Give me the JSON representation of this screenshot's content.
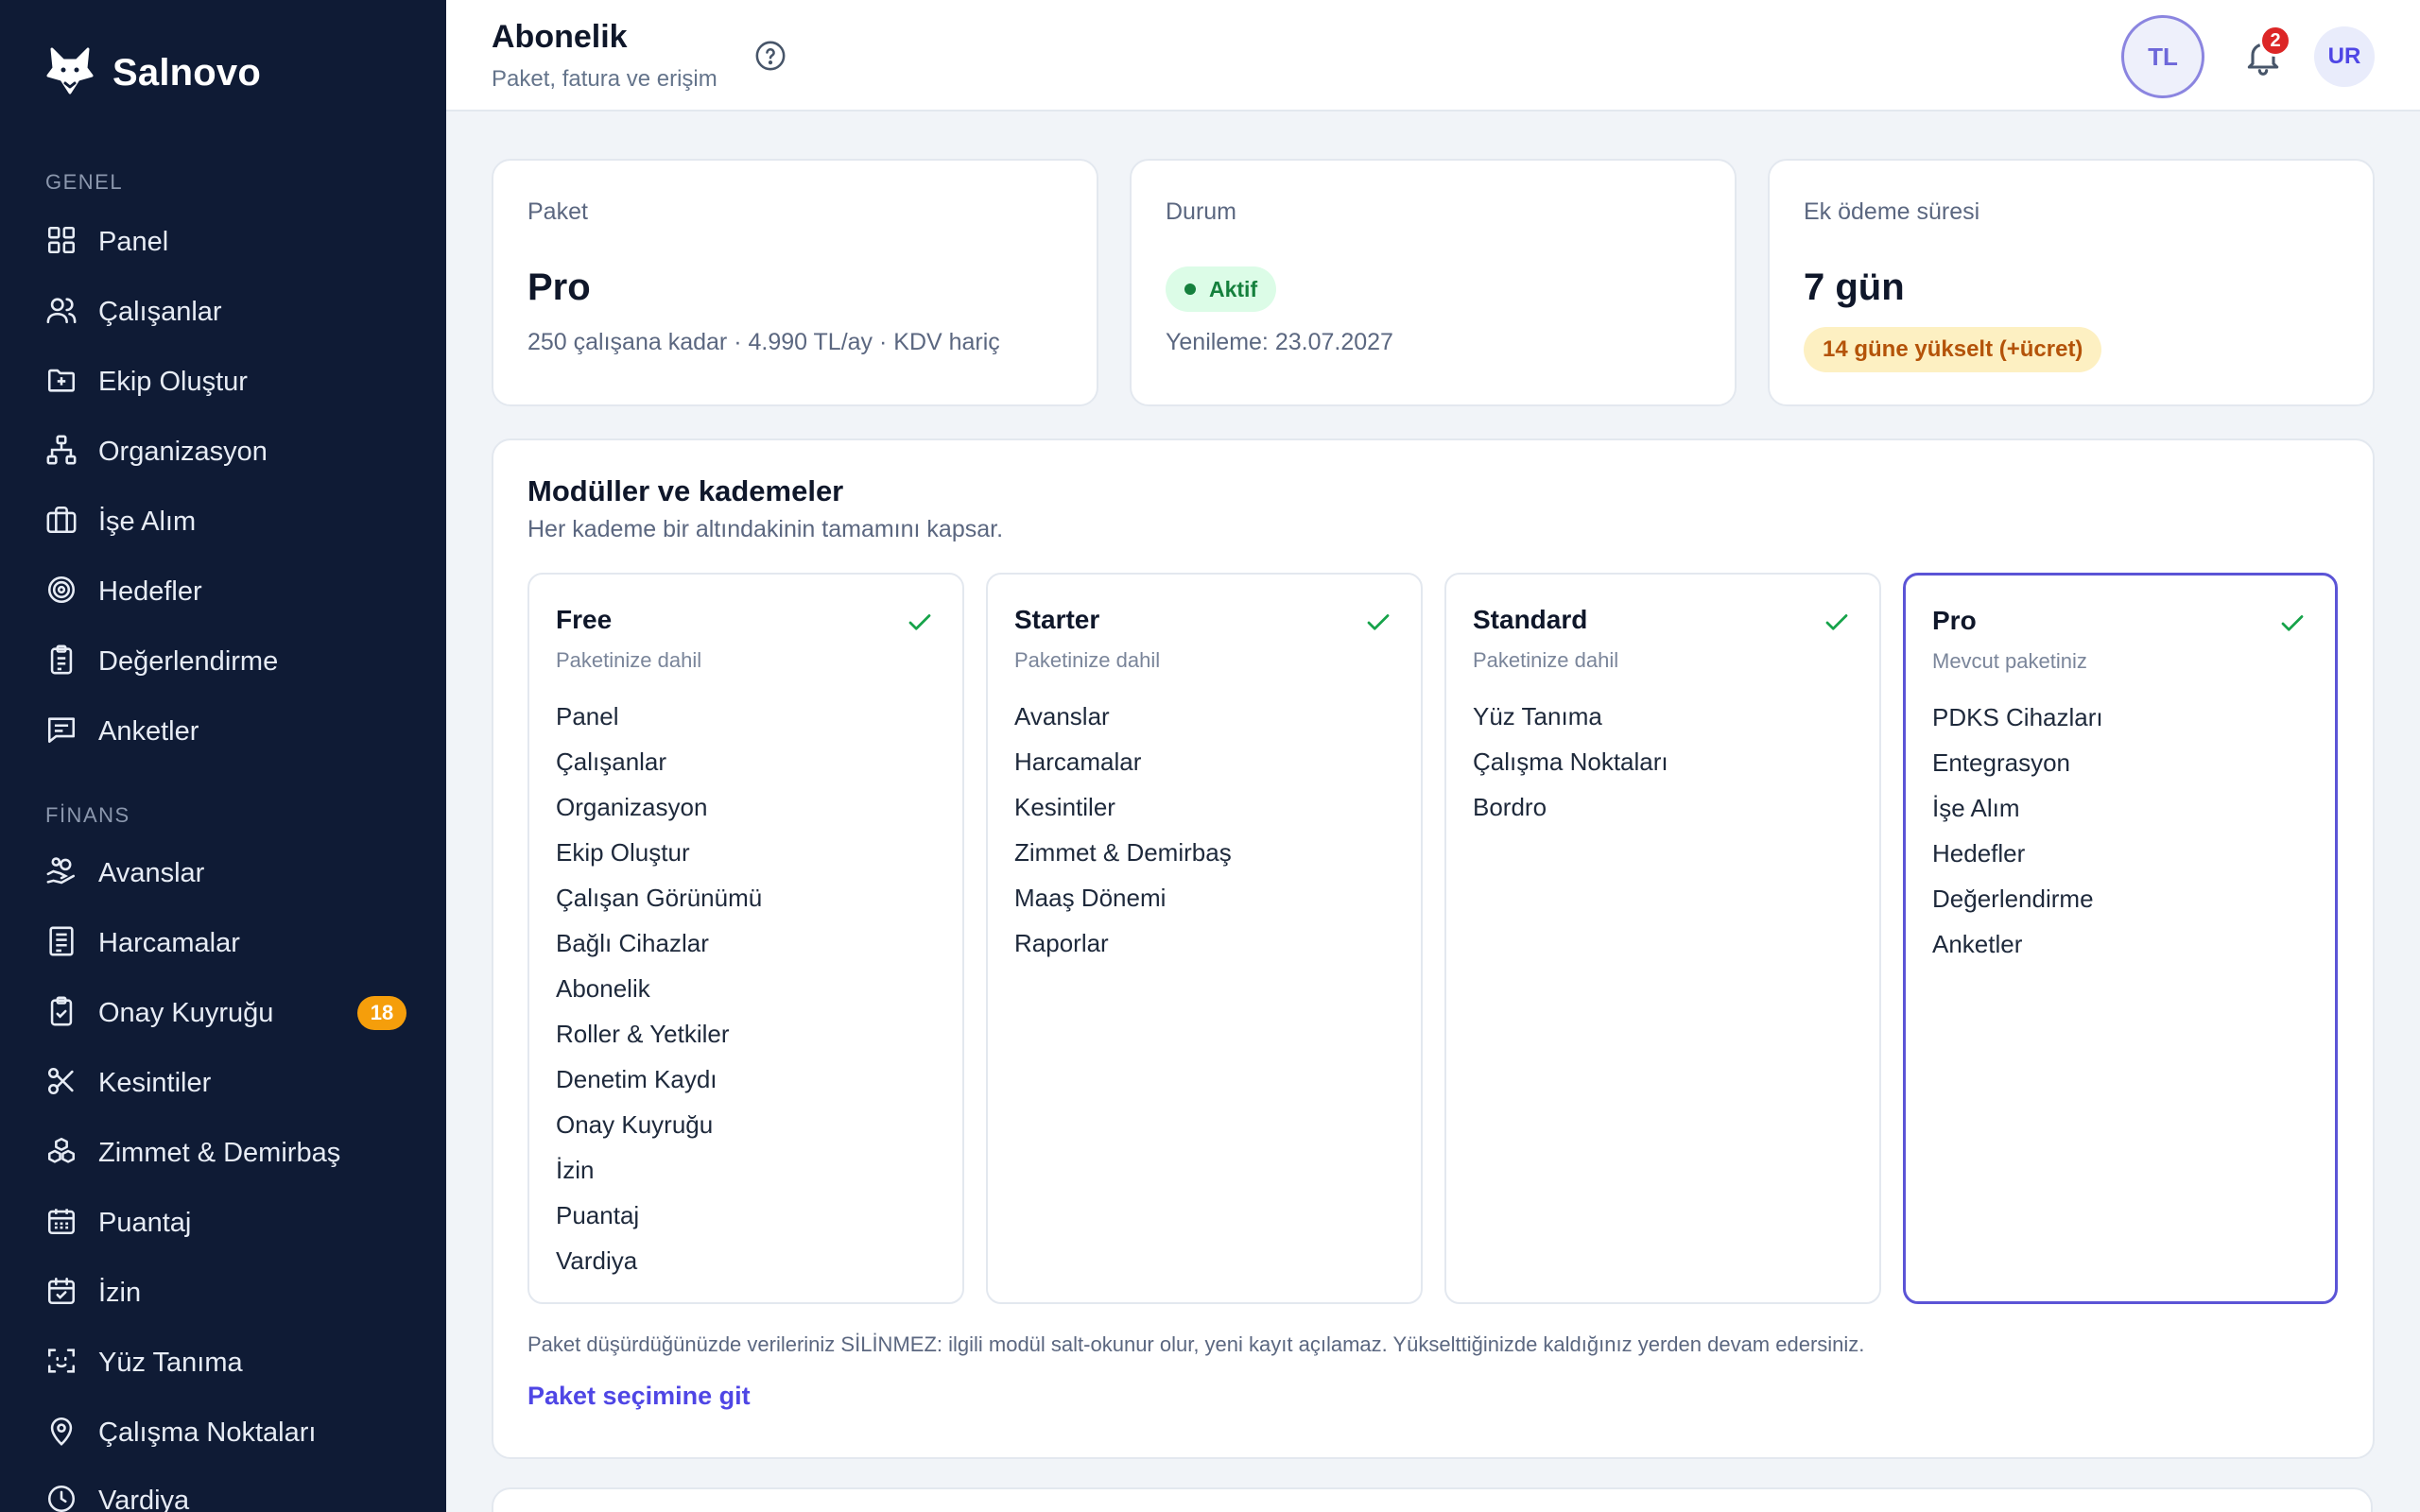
{
  "sidebar": {
    "brand": "Salnovo",
    "sections": [
      {
        "label": "GENEL",
        "items": [
          {
            "label": "Panel",
            "icon": "grid-icon"
          },
          {
            "label": "Çalışanlar",
            "icon": "users-icon"
          },
          {
            "label": "Ekip Oluştur",
            "icon": "folder-plus-icon"
          },
          {
            "label": "Organizasyon",
            "icon": "org-chart-icon"
          },
          {
            "label": "İşe Alım",
            "icon": "briefcase-icon"
          },
          {
            "label": "Hedefler",
            "icon": "target-icon"
          },
          {
            "label": "Değerlendirme",
            "icon": "clipboard-list-icon"
          },
          {
            "label": "Anketler",
            "icon": "message-square-icon"
          }
        ]
      },
      {
        "label": "FİNANS",
        "items": [
          {
            "label": "Avanslar",
            "icon": "hand-coins-icon"
          },
          {
            "label": "Harcamalar",
            "icon": "receipt-icon"
          },
          {
            "label": "Onay Kuyruğu",
            "icon": "clipboard-check-icon",
            "badge": "18"
          },
          {
            "label": "Kesintiler",
            "icon": "scissors-icon"
          },
          {
            "label": "Zimmet & Demirbaş",
            "icon": "boxes-icon"
          },
          {
            "label": "Puantaj",
            "icon": "calendar-grid-icon"
          },
          {
            "label": "İzin",
            "icon": "calendar-check-icon"
          },
          {
            "label": "Yüz Tanıma",
            "icon": "face-scan-icon"
          },
          {
            "label": "Çalışma Noktaları",
            "icon": "map-pin-icon"
          },
          {
            "label": "Vardiya",
            "icon": "clock-icon"
          }
        ]
      }
    ]
  },
  "header": {
    "title": "Abonelik",
    "subtitle": "Paket, fatura ve erişim",
    "currency_badge": "TL",
    "notification_count": "2",
    "user_initials": "UR"
  },
  "summary": {
    "package": {
      "label": "Paket",
      "value": "Pro",
      "note": "250 çalışana kadar · 4.990 TL/ay · KDV hariç"
    },
    "status": {
      "label": "Durum",
      "badge": "Aktif",
      "note": "Yenileme: 23.07.2027"
    },
    "grace": {
      "label": "Ek ödeme süresi",
      "value": "7 gün",
      "upgrade_badge": "14 güne yükselt (+ücret)"
    }
  },
  "modules": {
    "title": "Modüller ve kademeler",
    "subtitle": "Her kademe bir altındakinin tamamını kapsar.",
    "tiers": [
      {
        "name": "Free",
        "note": "Paketinize dahil",
        "current": false,
        "items": [
          "Panel",
          "Çalışanlar",
          "Organizasyon",
          "Ekip Oluştur",
          "Çalışan Görünümü",
          "Bağlı Cihazlar",
          "Abonelik",
          "Roller & Yetkiler",
          "Denetim Kaydı",
          "Onay Kuyruğu",
          "İzin",
          "Puantaj",
          "Vardiya"
        ]
      },
      {
        "name": "Starter",
        "note": "Paketinize dahil",
        "current": false,
        "items": [
          "Avanslar",
          "Harcamalar",
          "Kesintiler",
          "Zimmet & Demirbaş",
          "Maaş Dönemi",
          "Raporlar"
        ]
      },
      {
        "name": "Standard",
        "note": "Paketinize dahil",
        "current": false,
        "items": [
          "Yüz Tanıma",
          "Çalışma Noktaları",
          "Bordro"
        ]
      },
      {
        "name": "Pro",
        "note": "Mevcut paketiniz",
        "current": true,
        "items": [
          "PDKS Cihazları",
          "Entegrasyon",
          "İşe Alım",
          "Hedefler",
          "Değerlendirme",
          "Anketler"
        ]
      }
    ],
    "footnote": "Paket düşürdüğünüzde verileriniz SİLİNMEZ: ilgili modül salt-okunur olur, yeni kayıt açılamaz. Yükselttiğinizde kaldığınız yerden devam edersiniz.",
    "link": "Paket seçimine git"
  },
  "colors": {
    "sidebar_bg": "#0f1b35",
    "accent": "#4f46e5",
    "success": "#16a34a",
    "badge_orange": "#f59e0b",
    "notification_red": "#dc2626"
  }
}
